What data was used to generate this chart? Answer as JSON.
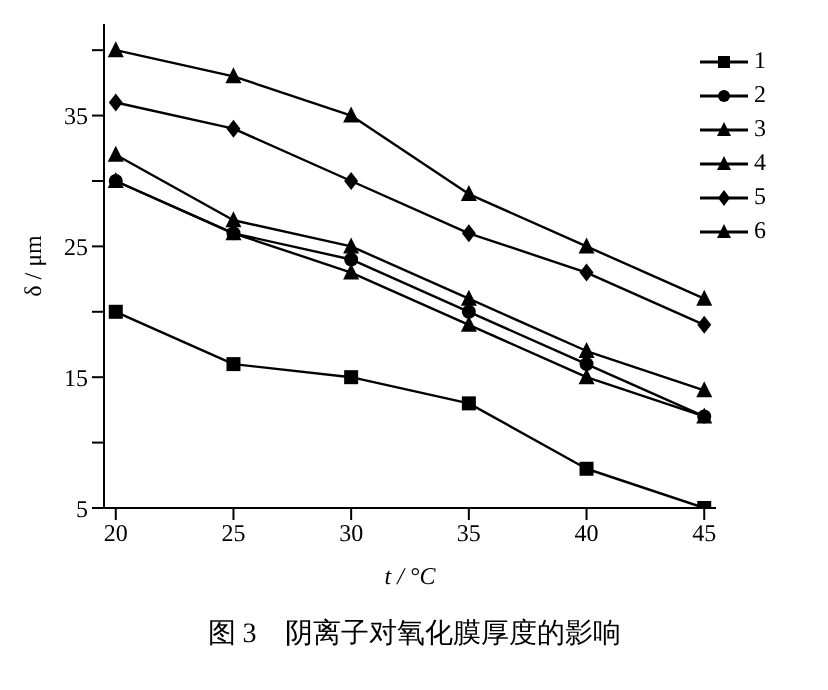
{
  "chart_data": {
    "type": "line",
    "xlabel": "t / °C",
    "ylabel": "δ / μm",
    "annotations": [
      "图 3　阴离子对氧化膜厚度的影响"
    ],
    "x": [
      20,
      25,
      30,
      35,
      40,
      45
    ],
    "xlim": [
      19.5,
      45.5
    ],
    "xticks": [
      20,
      25,
      30,
      35,
      40,
      45
    ],
    "ylim": [
      5,
      42
    ],
    "yticks": [
      5,
      {
        "value": 10,
        "label": null
      },
      15,
      {
        "value": 20,
        "label": null
      },
      25,
      {
        "value": 30,
        "label": null
      },
      35,
      {
        "value": 40,
        "label": null
      }
    ],
    "grid": false,
    "legend": "top right",
    "line_style": "solid",
    "series": [
      {
        "name": "1",
        "color": "#000000",
        "marker": "square",
        "values": [
          20,
          16,
          15,
          13,
          8,
          5
        ]
      },
      {
        "name": "2",
        "color": "#000000",
        "marker": "circle",
        "values": [
          30,
          26,
          24,
          20,
          16,
          12
        ]
      },
      {
        "name": "3",
        "color": "#000000",
        "marker": "triangle",
        "values": [
          32,
          27,
          25,
          21,
          17,
          14
        ]
      },
      {
        "name": "4",
        "color": "#000000",
        "marker": "triangle",
        "values": [
          30,
          26,
          23,
          19,
          15,
          12
        ]
      },
      {
        "name": "5",
        "color": "#000000",
        "marker": "diamond",
        "values": [
          36,
          34,
          30,
          26,
          23,
          19
        ]
      },
      {
        "name": "6",
        "color": "#000000",
        "marker": "triangle",
        "values": [
          40,
          38,
          35,
          29,
          25,
          21
        ]
      }
    ]
  }
}
